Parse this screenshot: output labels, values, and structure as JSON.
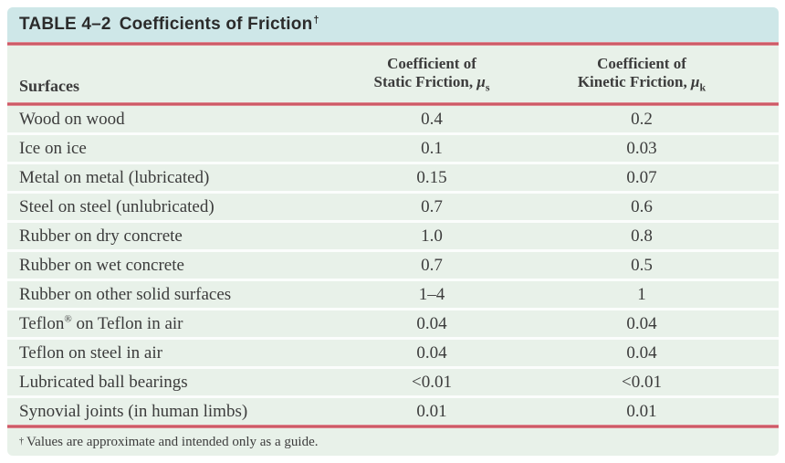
{
  "table": {
    "title": {
      "number": "TABLE 4–2",
      "text": "Coefficients of Friction",
      "sup": "†"
    },
    "columns": {
      "surfaces": "Surfaces",
      "static": {
        "line1": "Coefficient of",
        "line2": "Static Friction, ",
        "symbol": "μ",
        "sub": "s"
      },
      "kinetic": {
        "line1": "Coefficient of",
        "line2": "Kinetic Friction, ",
        "symbol": "μ",
        "sub": "k"
      }
    },
    "rows": [
      {
        "surface": "Wood on wood",
        "static": "0.4",
        "kinetic": "0.2"
      },
      {
        "surface": "Ice on ice",
        "static": "0.1",
        "kinetic": "0.03"
      },
      {
        "surface": "Metal on metal (lubricated)",
        "static": "0.15",
        "kinetic": "0.07"
      },
      {
        "surface": "Steel on steel (unlubricated)",
        "static": "0.7",
        "kinetic": "0.6"
      },
      {
        "surface": "Rubber on dry concrete",
        "static": "1.0",
        "kinetic": "0.8"
      },
      {
        "surface": "Rubber on wet concrete",
        "static": "0.7",
        "kinetic": "0.5"
      },
      {
        "surface": "Rubber on other solid surfaces",
        "static": "1–4",
        "kinetic": "1"
      },
      {
        "surface": "Teflon",
        "sup": "®",
        "rest": " on Teflon in air",
        "static": "0.04",
        "kinetic": "0.04"
      },
      {
        "surface": "Teflon on steel in air",
        "static": "0.04",
        "kinetic": "0.04"
      },
      {
        "surface": "Lubricated ball bearings",
        "static": "<0.01",
        "kinetic": "<0.01"
      },
      {
        "surface": "Synovial joints (in human limbs)",
        "static": "0.01",
        "kinetic": "0.01"
      }
    ],
    "footnote": {
      "sup": "†",
      "text": "Values are approximate and intended only as a guide."
    }
  },
  "colors": {
    "title_bar": "#cee7e8",
    "row_band": "#e8f1e9",
    "rule_core": "#cd5a66",
    "rule_edge": "#eaa6ae",
    "ink": "#2b2b2b",
    "body_ink": "#3c3c3c"
  }
}
